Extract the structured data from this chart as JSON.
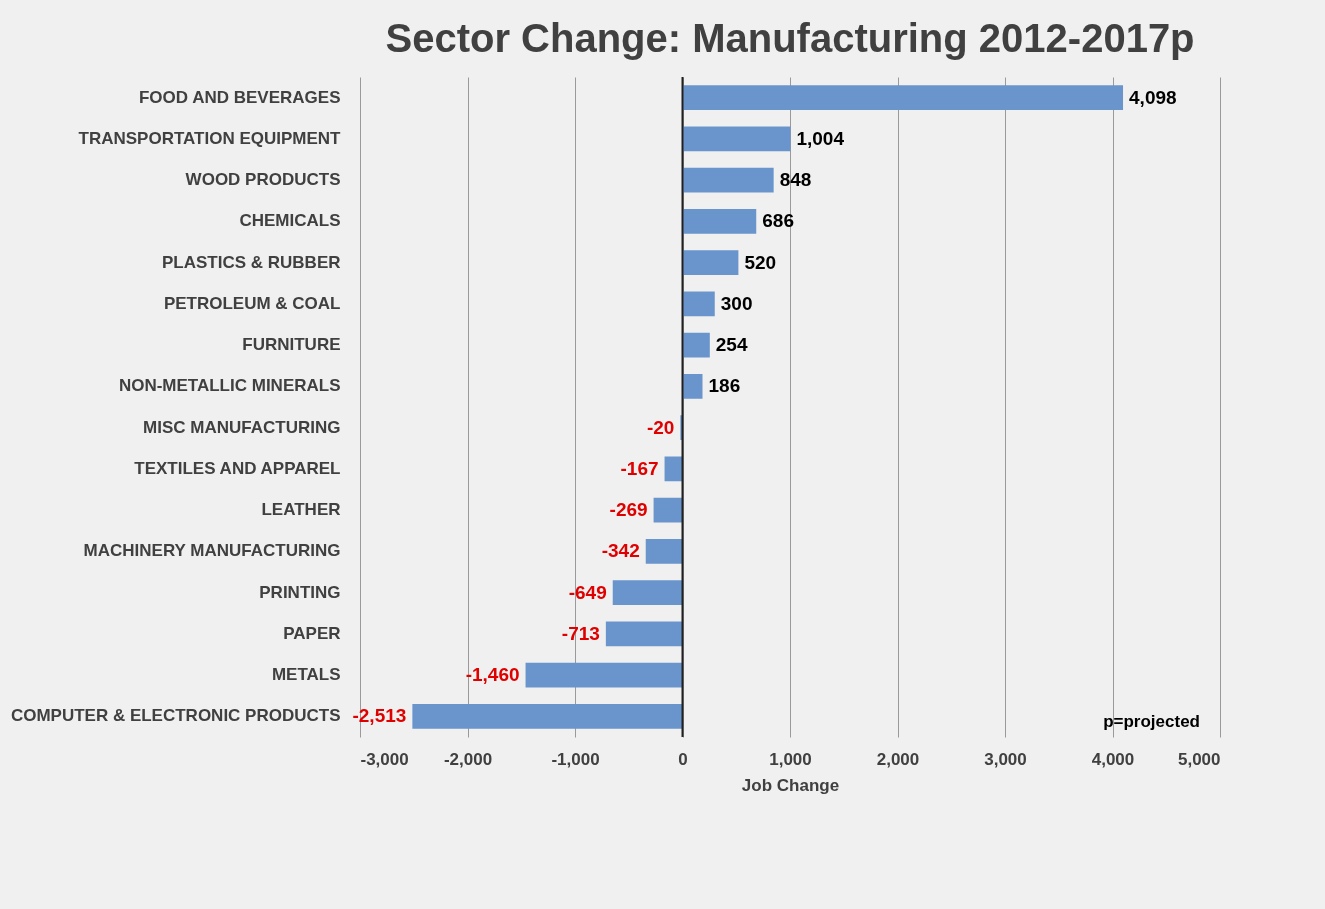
{
  "chart_data": {
    "type": "bar",
    "orientation": "horizontal",
    "title": "Sector Change: Manufacturing 2012-2017p",
    "xlabel": "Job Change",
    "categories": [
      "FOOD AND BEVERAGES",
      "TRANSPORTATION EQUIPMENT",
      "WOOD PRODUCTS",
      "CHEMICALS",
      "PLASTICS & RUBBER",
      "PETROLEUM & COAL",
      "FURNITURE",
      "NON-METALLIC MINERALS",
      "MISC MANUFACTURING",
      "TEXTILES AND APPAREL",
      "LEATHER",
      "MACHINERY MANUFACTURING",
      "PRINTING",
      "PAPER",
      "METALS",
      "COMPUTER & ELECTRONIC PRODUCTS"
    ],
    "values": [
      4098,
      1004,
      848,
      686,
      520,
      300,
      254,
      186,
      -20,
      -167,
      -269,
      -342,
      -649,
      -713,
      -1460,
      -2513
    ],
    "value_labels": [
      "4,098",
      "1,004",
      "848",
      "686",
      "520",
      "300",
      "254",
      "186",
      "-20",
      "-167",
      "-269",
      "-342",
      "-649",
      "-713",
      "-1,460",
      "-2,513"
    ],
    "color": "#6a95cc",
    "xlim": [
      -3000,
      5000
    ],
    "xticks": [
      {
        "value": -3000,
        "label": "-3,000"
      },
      {
        "value": -2000,
        "label": "-2,000"
      },
      {
        "value": -1000,
        "label": "-1,000"
      },
      0,
      {
        "value": 1000,
        "label": "1,000"
      },
      {
        "value": 2000,
        "label": "2,000"
      },
      {
        "value": 3000,
        "label": "3,000"
      },
      {
        "value": 4000,
        "label": "4,000"
      },
      {
        "value": 5000,
        "label": "5,000"
      }
    ],
    "grid": "x",
    "annotations": [
      "p=projected"
    ]
  }
}
